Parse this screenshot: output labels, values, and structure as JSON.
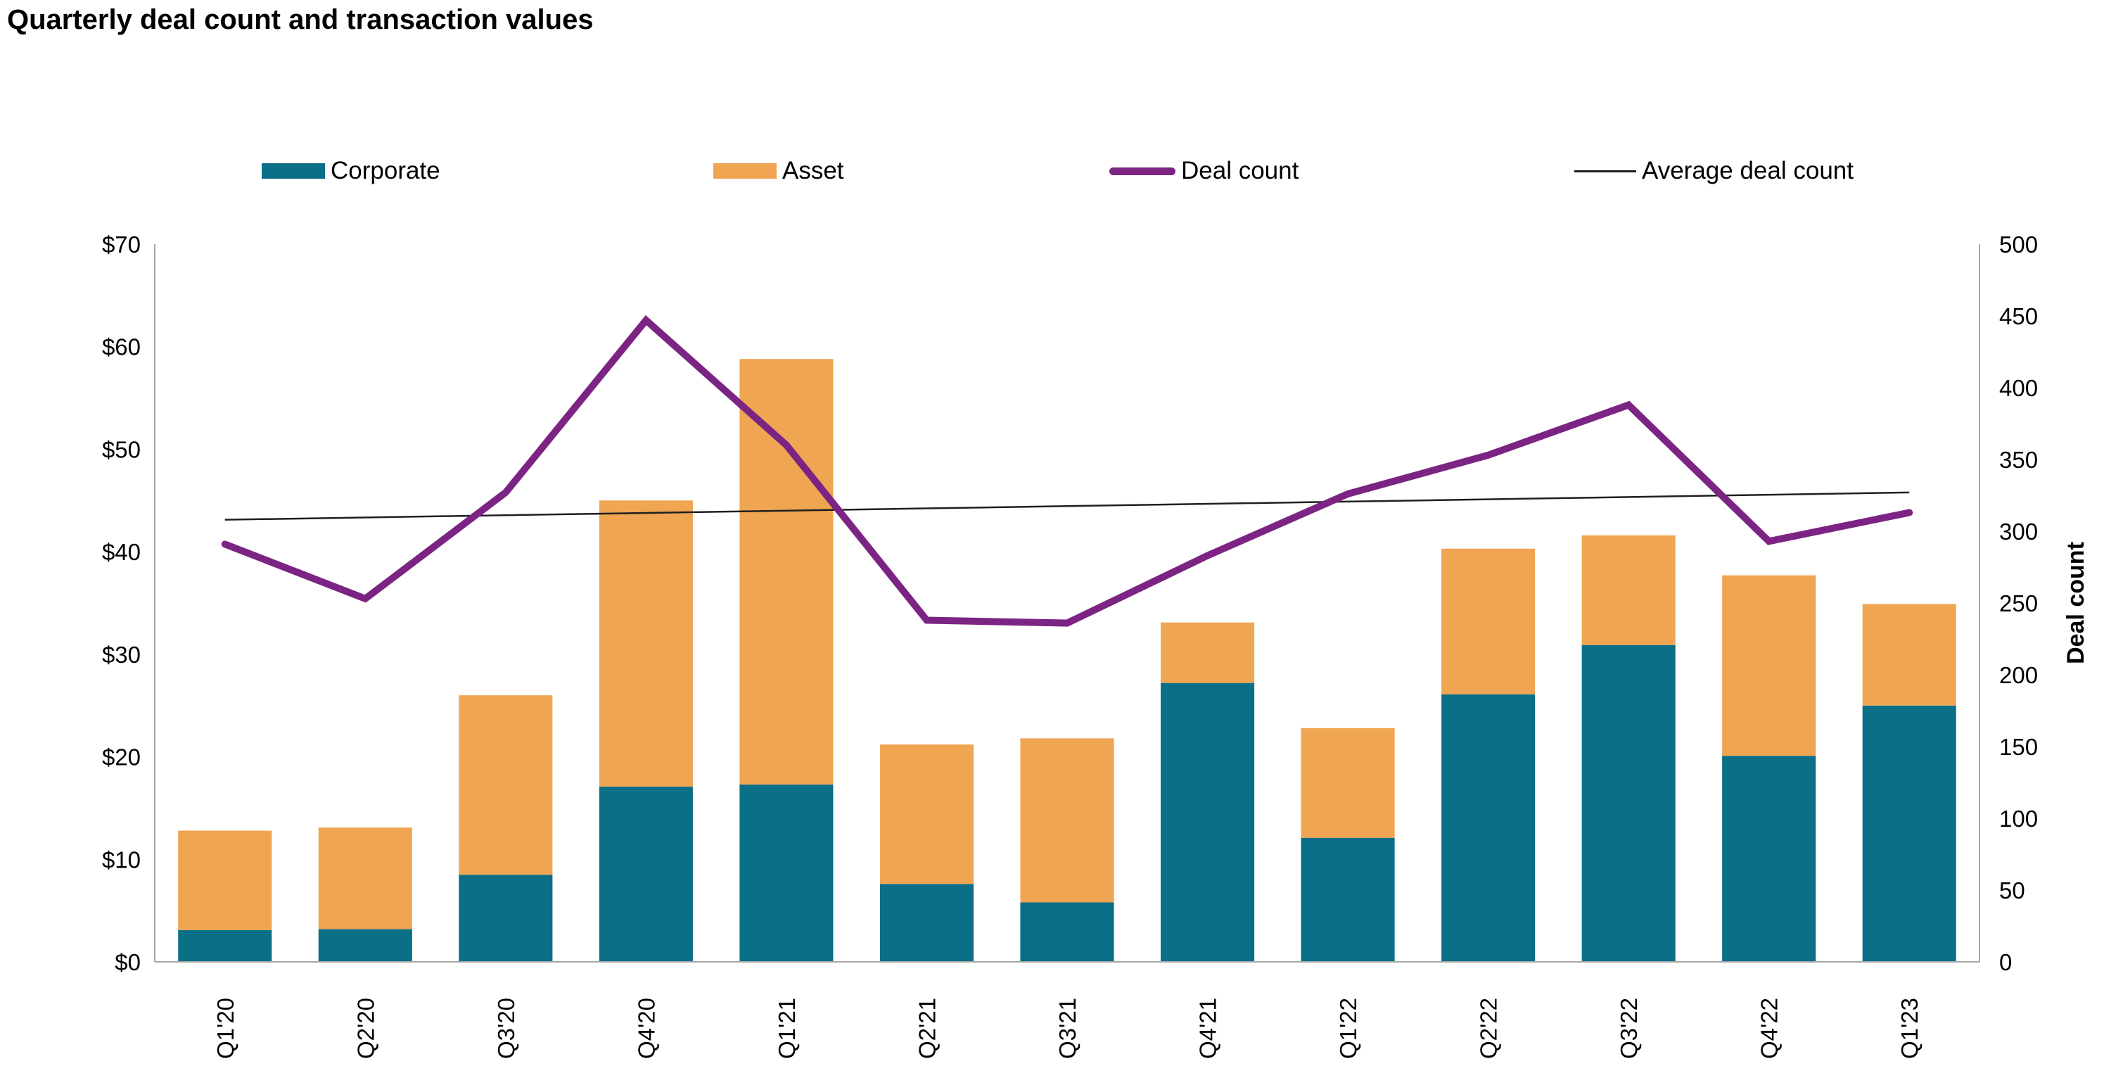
{
  "title": "Quarterly deal count and transaction values",
  "legend": [
    {
      "label": "Corporate",
      "swatch": "rect",
      "color": "#0B6F87"
    },
    {
      "label": "Asset",
      "swatch": "rect",
      "color": "#F0A552"
    },
    {
      "label": "Deal count",
      "swatch": "thick-line",
      "color": "#7C2483"
    },
    {
      "label": "Average deal count",
      "swatch": "thin-line",
      "color": "#1F1F1F"
    }
  ],
  "colors": {
    "corporate": "#0B6F87",
    "asset": "#F0A552",
    "deal_count_line": "#7C2483",
    "average_line": "#1F1F1F",
    "axis_line": "#A6A6A6",
    "background": "#FFFFFF"
  },
  "chart_data": {
    "type": "bar",
    "subtype": "stacked-bars-with-lines",
    "title": "Quarterly deal count and transaction values",
    "categories": [
      "Q1'20",
      "Q2'20",
      "Q3'20",
      "Q4'20",
      "Q1'21",
      "Q2'21",
      "Q3'21",
      "Q4'21",
      "Q1'22",
      "Q2'22",
      "Q3'22",
      "Q4'22",
      "Q1'23"
    ],
    "series": [
      {
        "name": "Corporate",
        "type": "bar",
        "stack": "values",
        "axis": "left",
        "values": [
          3.1,
          3.2,
          8.5,
          17.1,
          17.3,
          7.6,
          5.8,
          27.2,
          12.1,
          26.1,
          30.9,
          20.1,
          25.0
        ]
      },
      {
        "name": "Asset",
        "type": "bar",
        "stack": "values",
        "axis": "left",
        "values": [
          9.7,
          9.9,
          17.5,
          27.9,
          41.5,
          13.6,
          16.0,
          5.9,
          10.7,
          14.2,
          10.7,
          17.6,
          9.9
        ]
      },
      {
        "name": "Deal count",
        "type": "line",
        "axis": "right",
        "values": [
          291,
          253,
          327,
          447,
          360,
          238,
          236,
          283,
          326,
          353,
          388,
          293,
          313
        ]
      },
      {
        "name": "Average deal count",
        "type": "trend-line",
        "axis": "right",
        "endpoint_values": [
          308,
          327
        ]
      }
    ],
    "stacked_totals": [
      12.8,
      13.1,
      26.0,
      45.0,
      58.8,
      21.2,
      21.8,
      33.1,
      22.8,
      40.3,
      41.6,
      37.7,
      34.9
    ],
    "left_axis": {
      "min": 0,
      "max": 70,
      "tick_step": 10,
      "tick_prefix": "$",
      "tick_labels": [
        "$0",
        "$10",
        "$20",
        "$30",
        "$40",
        "$50",
        "$60",
        "$70"
      ]
    },
    "right_axis": {
      "title": "Deal count",
      "min": 0,
      "max": 500,
      "tick_step": 50,
      "tick_labels": [
        "0",
        "50",
        "100",
        "150",
        "200",
        "250",
        "300",
        "350",
        "400",
        "450",
        "500"
      ]
    },
    "gridlines": false,
    "legend_position": "top",
    "bar_gap_ratio": 0.667
  }
}
